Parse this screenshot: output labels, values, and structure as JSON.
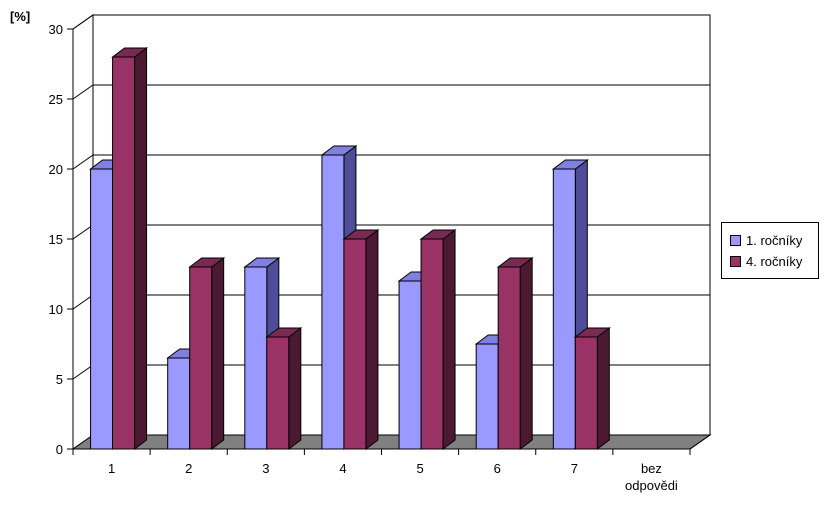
{
  "chart_data": {
    "type": "bar",
    "ylabel": "[%]",
    "ylim": [
      0,
      30
    ],
    "yticks": [
      0,
      5,
      10,
      15,
      20,
      25,
      30
    ],
    "grid": true,
    "legend_position": "right",
    "categories": [
      "1",
      "2",
      "3",
      "4",
      "5",
      "6",
      "7",
      "bez odpovědi"
    ],
    "series": [
      {
        "name": "1. ročníky",
        "values": [
          20,
          6.5,
          13,
          21,
          12,
          7.5,
          20,
          0
        ]
      },
      {
        "name": "4. ročníky",
        "values": [
          28,
          13,
          8,
          15,
          15,
          13,
          8,
          0
        ]
      }
    ]
  },
  "colors": {
    "series1_front": "#9999ff",
    "series1_top": "#8080e0",
    "series1_side": "#4d4d99",
    "series2_front": "#993366",
    "series2_top": "#7a2952",
    "series2_side": "#4c1933",
    "floor": "#808080",
    "grid": "#000000"
  }
}
